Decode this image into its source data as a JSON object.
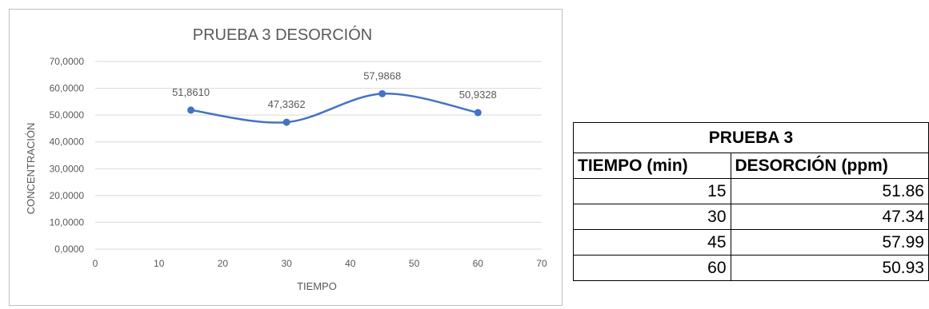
{
  "chart_data": {
    "type": "scatter",
    "title": "PRUEBA 3 DESORCIÓN",
    "xlabel": "TIEMPO",
    "ylabel": "CONCENTRACIÓN",
    "x": [
      15,
      30,
      45,
      60
    ],
    "y": [
      51.861,
      47.3362,
      57.9868,
      50.9328
    ],
    "data_labels": [
      "51,8610",
      "47,3362",
      "57,9868",
      "50,9328"
    ],
    "xlim": [
      0,
      70
    ],
    "ylim": [
      0,
      70
    ],
    "x_ticks": [
      0,
      10,
      20,
      30,
      40,
      50,
      60,
      70
    ],
    "x_tick_labels": [
      "0",
      "10",
      "20",
      "30",
      "40",
      "50",
      "60",
      "70"
    ],
    "y_ticks": [
      0,
      10,
      20,
      30,
      40,
      50,
      60,
      70
    ],
    "y_tick_labels": [
      "0,0000",
      "10,0000",
      "20,0000",
      "30,0000",
      "40,0000",
      "50,0000",
      "60,0000",
      "70,0000"
    ],
    "grid": true,
    "smooth_line": true,
    "colors": {
      "series": "#4472c4",
      "grid": "#d9d9d9",
      "text": "#595959"
    }
  },
  "table": {
    "title": "PRUEBA 3",
    "headers": [
      "TIEMPO (min)",
      "DESORCIÓN (ppm)"
    ],
    "rows": [
      [
        "15",
        "51.86"
      ],
      [
        "30",
        "47.34"
      ],
      [
        "45",
        "57.99"
      ],
      [
        "60",
        "50.93"
      ]
    ]
  }
}
